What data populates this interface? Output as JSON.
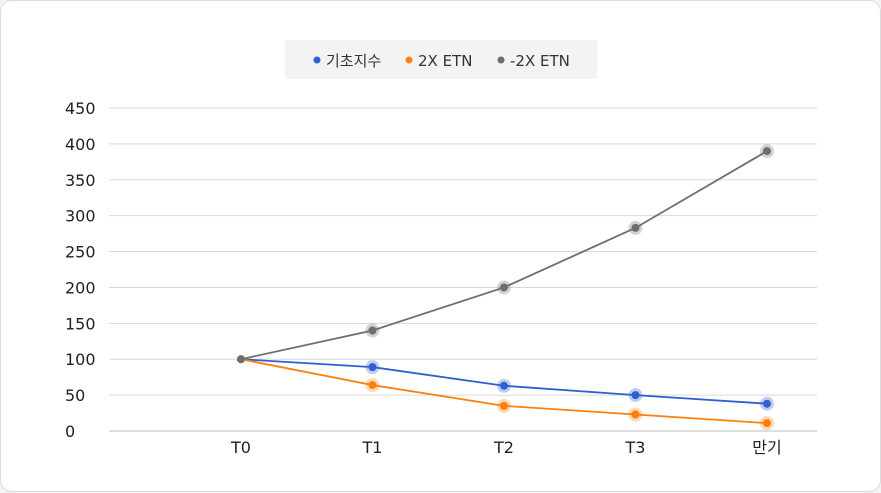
{
  "chart_data": {
    "type": "line",
    "categories": [
      "T0",
      "T1",
      "T2",
      "T3",
      "만기"
    ],
    "ylim": [
      0,
      450
    ],
    "yticks": [
      0,
      50,
      100,
      150,
      200,
      250,
      300,
      350,
      400,
      450
    ],
    "grid": true,
    "legend_position": "top-center",
    "series": [
      {
        "name": "기초지수",
        "color": "#2f5fd0",
        "values": [
          100,
          89,
          63,
          50,
          38
        ]
      },
      {
        "name": "2X ETN",
        "color": "#ff7f0e",
        "values": [
          100,
          64,
          35,
          23,
          11
        ]
      },
      {
        "name": "-2X ETN",
        "color": "#6e6e6e",
        "values": [
          100,
          140,
          200,
          283,
          390
        ]
      }
    ]
  }
}
